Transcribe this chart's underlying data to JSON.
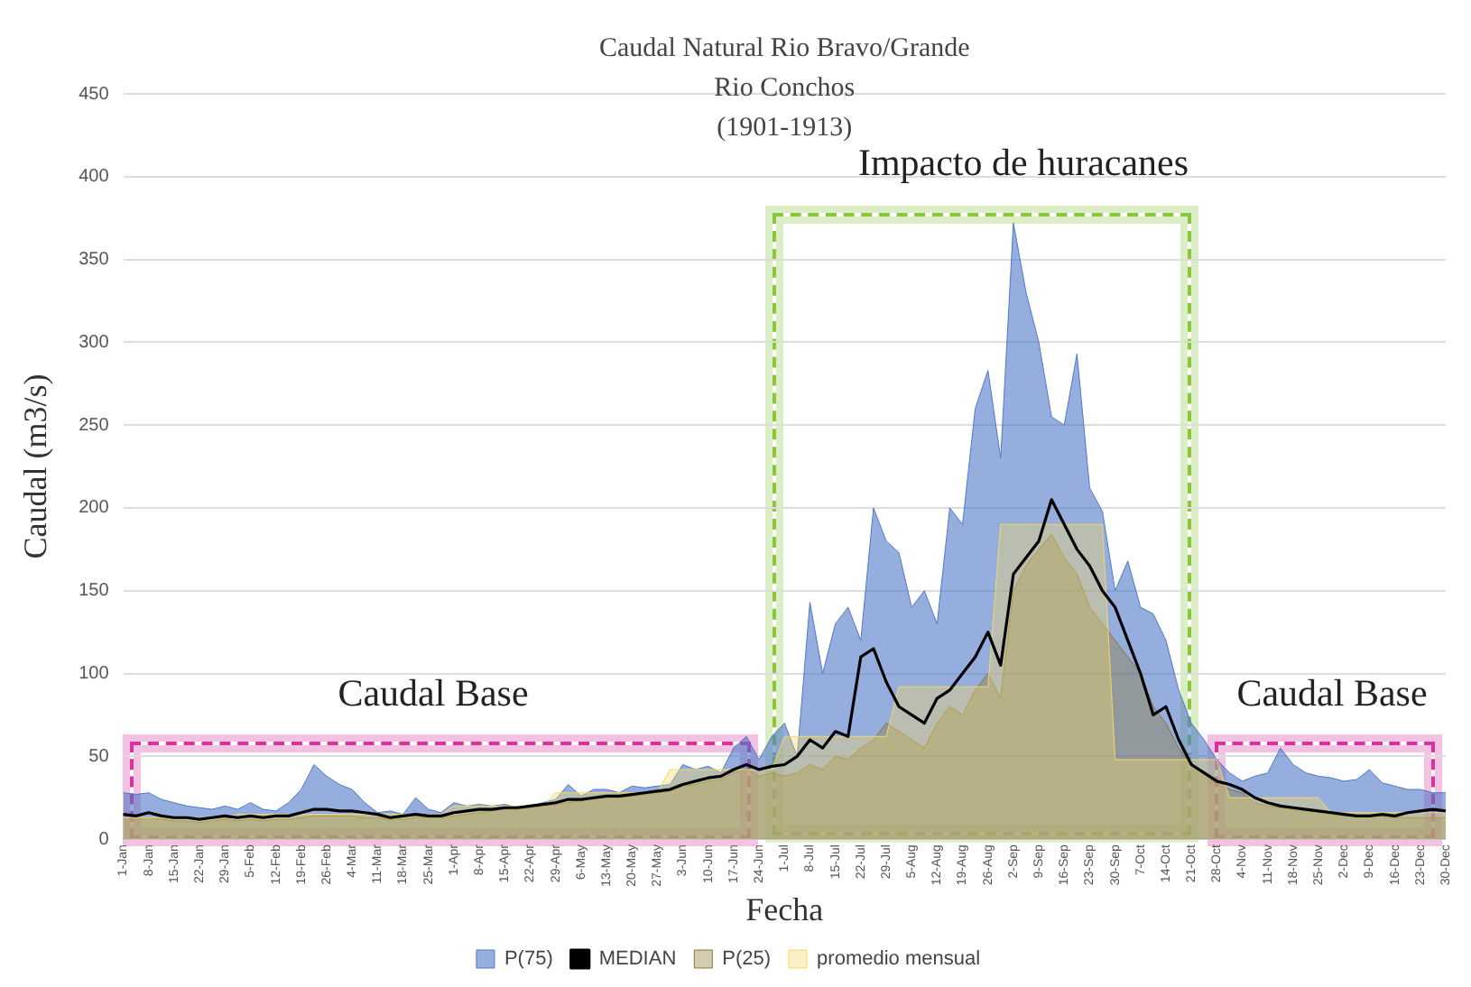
{
  "chart_data": {
    "type": "area",
    "title": "Caudal Natural Rio Bravo/Grande",
    "subtitle": "Rio Conchos\n(1901-1913)",
    "xlabel": "Fecha",
    "ylabel": "Caudal (m3/s)",
    "categories": [
      "1-Jan",
      null,
      "8-Jan",
      null,
      "15-Jan",
      null,
      "22-Jan",
      null,
      "29-Jan",
      null,
      "5-Feb",
      null,
      "12-Feb",
      null,
      "19-Feb",
      null,
      "26-Feb",
      null,
      "4-Mar",
      null,
      "11-Mar",
      null,
      "18-Mar",
      null,
      "25-Mar",
      null,
      "1-Apr",
      null,
      "8-Apr",
      null,
      "15-Apr",
      null,
      "22-Apr",
      null,
      "29-Apr",
      null,
      "6-May",
      null,
      "13-May",
      null,
      "20-May",
      null,
      "27-May",
      null,
      "3-Jun",
      null,
      "10-Jun",
      null,
      "17-Jun",
      null,
      "24-Jun",
      null,
      "1-Jul",
      null,
      "8-Jul",
      null,
      "15-Jul",
      null,
      "22-Jul",
      null,
      "29-Jul",
      null,
      "5-Aug",
      null,
      "12-Aug",
      null,
      "19-Aug",
      null,
      "26-Aug",
      null,
      "2-Sep",
      null,
      "9-Sep",
      null,
      "16-Sep",
      null,
      "23-Sep",
      null,
      "30-Sep",
      null,
      "7-Oct",
      null,
      "14-Oct",
      null,
      "21-Oct",
      null,
      "28-Oct",
      null,
      "4-Nov",
      null,
      "11-Nov",
      null,
      "18-Nov",
      null,
      "25-Nov",
      null,
      "2-Dec",
      null,
      "9-Dec",
      null,
      "16-Dec",
      null,
      "23-Dec",
      null,
      "30-Dec"
    ],
    "series": [
      {
        "name": "P(75)",
        "color": "#4f78c8",
        "values": [
          28,
          27,
          28,
          24,
          22,
          20,
          19,
          18,
          20,
          18,
          22,
          18,
          17,
          22,
          30,
          45,
          38,
          33,
          30,
          22,
          16,
          17,
          15,
          25,
          18,
          16,
          22,
          20,
          21,
          20,
          21,
          19,
          20,
          22,
          24,
          33,
          26,
          30,
          30,
          28,
          32,
          31,
          32,
          33,
          45,
          42,
          44,
          40,
          55,
          62,
          48,
          62,
          70,
          50,
          143,
          100,
          130,
          140,
          120,
          200,
          180,
          173,
          140,
          150,
          130,
          200,
          190,
          260,
          283,
          230,
          372,
          330,
          300,
          255,
          250,
          293,
          212,
          198,
          150,
          168,
          140,
          136,
          120,
          90,
          70,
          60,
          48,
          40,
          35,
          38,
          40,
          55,
          45,
          40,
          38,
          37,
          35,
          36,
          42,
          34,
          32,
          30,
          30,
          28,
          28
        ]
      },
      {
        "name": "MEDIAN",
        "type": "line",
        "color": "#000000",
        "values": [
          15,
          14,
          16,
          14,
          13,
          13,
          12,
          13,
          14,
          13,
          14,
          13,
          14,
          14,
          16,
          18,
          18,
          17,
          17,
          16,
          15,
          13,
          14,
          15,
          14,
          14,
          16,
          17,
          18,
          18,
          19,
          19,
          20,
          21,
          22,
          24,
          24,
          25,
          26,
          26,
          27,
          28,
          29,
          30,
          33,
          35,
          37,
          38,
          42,
          45,
          42,
          44,
          45,
          50,
          60,
          55,
          65,
          62,
          110,
          115,
          95,
          80,
          75,
          70,
          85,
          90,
          100,
          110,
          125,
          105,
          160,
          170,
          180,
          205,
          190,
          175,
          165,
          150,
          140,
          120,
          100,
          75,
          80,
          60,
          45,
          40,
          35,
          33,
          30,
          25,
          22,
          20,
          19,
          18,
          17,
          16,
          15,
          14,
          14,
          15,
          14,
          16,
          17,
          18,
          17
        ]
      },
      {
        "name": "P(25)",
        "color": "#8b7535",
        "values": [
          13,
          12,
          13,
          12,
          11,
          11,
          10,
          11,
          12,
          11,
          12,
          11,
          12,
          12,
          13,
          14,
          14,
          14,
          14,
          13,
          13,
          12,
          12,
          13,
          13,
          13,
          14,
          15,
          16,
          17,
          18,
          18,
          19,
          20,
          21,
          22,
          23,
          24,
          25,
          25,
          26,
          27,
          28,
          29,
          32,
          33,
          35,
          36,
          40,
          42,
          38,
          40,
          38,
          40,
          45,
          42,
          50,
          48,
          55,
          60,
          70,
          65,
          60,
          55,
          70,
          80,
          75,
          90,
          100,
          85,
          150,
          165,
          175,
          184,
          170,
          160,
          140,
          130,
          120,
          110,
          100,
          80,
          70,
          55,
          45,
          40,
          35,
          30,
          28,
          22,
          20,
          19,
          18,
          17,
          16,
          15,
          14,
          14,
          14,
          14,
          13,
          13,
          13,
          13,
          13
        ]
      },
      {
        "name": "promedio mensual",
        "type": "area",
        "color": "#f5d866",
        "values": [
          13,
          13,
          13,
          13,
          13,
          13,
          13,
          13,
          13,
          15,
          15,
          15,
          15,
          15,
          15,
          15,
          15,
          15,
          15,
          15,
          15,
          15,
          15,
          15,
          15,
          15,
          20,
          20,
          20,
          20,
          20,
          20,
          20,
          20,
          28,
          28,
          28,
          28,
          28,
          28,
          28,
          28,
          28,
          42,
          42,
          42,
          42,
          42,
          42,
          42,
          42,
          42,
          62,
          62,
          62,
          62,
          62,
          62,
          62,
          62,
          62,
          92,
          92,
          92,
          92,
          92,
          92,
          92,
          92,
          190,
          190,
          190,
          190,
          190,
          190,
          190,
          190,
          190,
          48,
          48,
          48,
          48,
          48,
          48,
          48,
          48,
          48,
          25,
          25,
          25,
          25,
          25,
          25,
          25,
          25,
          16,
          16,
          16,
          16,
          16,
          16,
          16,
          16,
          16,
          16
        ]
      }
    ],
    "ylim": [
      0,
      450
    ],
    "yticks": [
      0,
      50,
      100,
      150,
      200,
      250,
      300,
      350,
      400,
      450
    ],
    "grid": "y",
    "legend": "bottom",
    "annotations": [
      "Caudal Base",
      "Impacto de huracanes",
      "Caudal Base"
    ]
  }
}
